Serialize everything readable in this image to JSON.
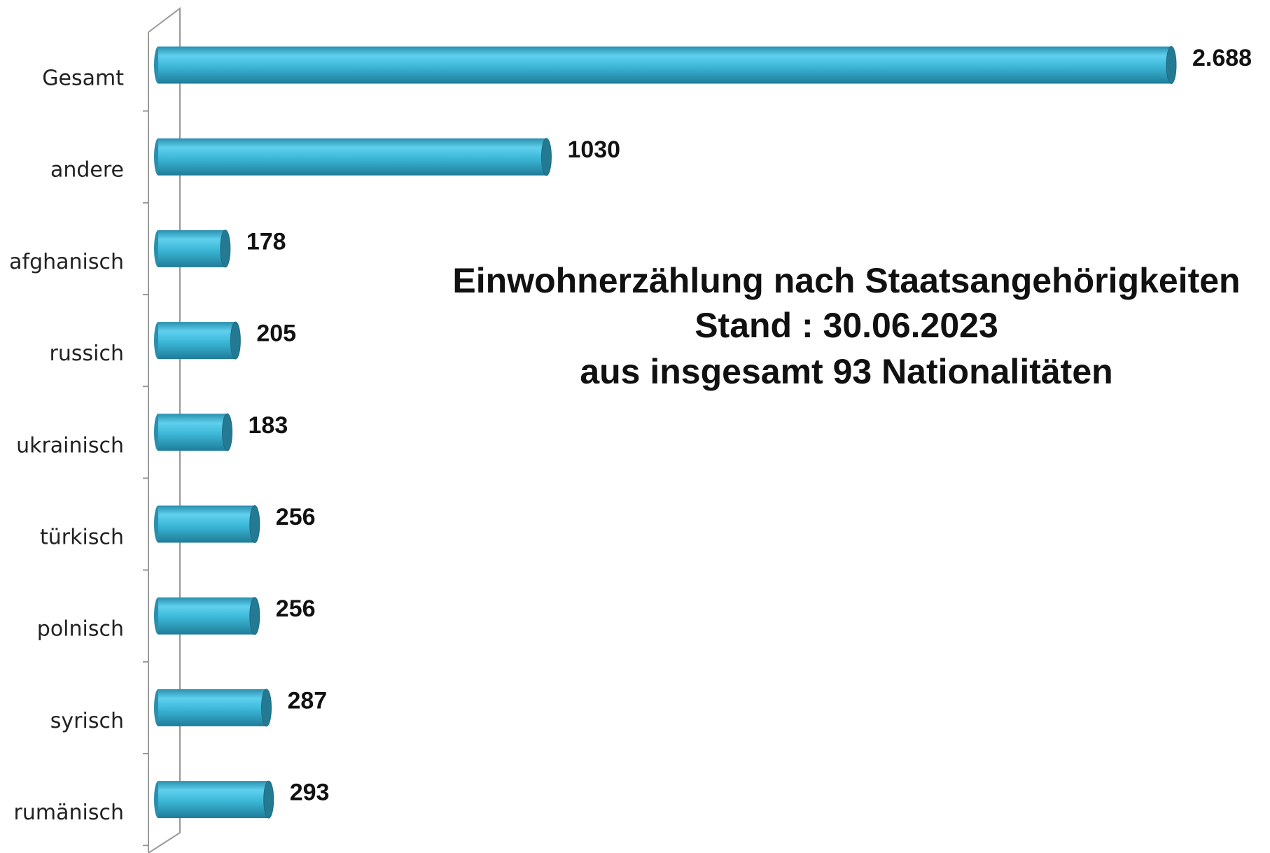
{
  "chart_data": {
    "type": "bar",
    "orientation": "horizontal",
    "title": "Einwohnerzählung nach Staatsangehörigkeiten",
    "subtitle": [
      "Stand : 30.06.2023",
      "aus insgesamt 93 Nationalitäten"
    ],
    "categories": [
      "Gesamt",
      "andere",
      "afghanisch",
      "russich",
      "ukrainisch",
      "türkisch",
      "polnisch",
      "syrisch",
      "rumänisch"
    ],
    "values": [
      2688,
      1030,
      178,
      205,
      183,
      256,
      256,
      287,
      293
    ],
    "value_labels": [
      "2.688",
      "1030",
      "178",
      "205",
      "183",
      "256",
      "256",
      "287",
      "293"
    ],
    "color": "#3bb6d6"
  }
}
